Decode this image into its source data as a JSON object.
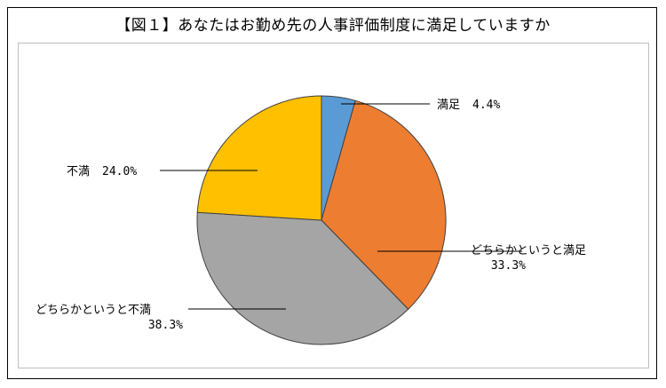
{
  "chart_data": {
    "type": "pie",
    "title": "【図１】あなたはお勤め先の人事評価制度に満足していますか",
    "slices": [
      {
        "name": "満足",
        "value": 4.4,
        "label": "4.4%",
        "color": "#5b9bd5"
      },
      {
        "name": "どちらかというと満足",
        "value": 33.3,
        "label": "33.3%",
        "color": "#ed7d31"
      },
      {
        "name": "どちらかというと不満",
        "value": 38.3,
        "label": "38.3%",
        "color": "#a5a5a5"
      },
      {
        "name": "不満",
        "value": 24.0,
        "label": "24.0%",
        "color": "#ffc000"
      }
    ],
    "start_angle_deg": 0,
    "direction": "clockwise",
    "legend": "none",
    "slice_border_color": "#404040"
  }
}
